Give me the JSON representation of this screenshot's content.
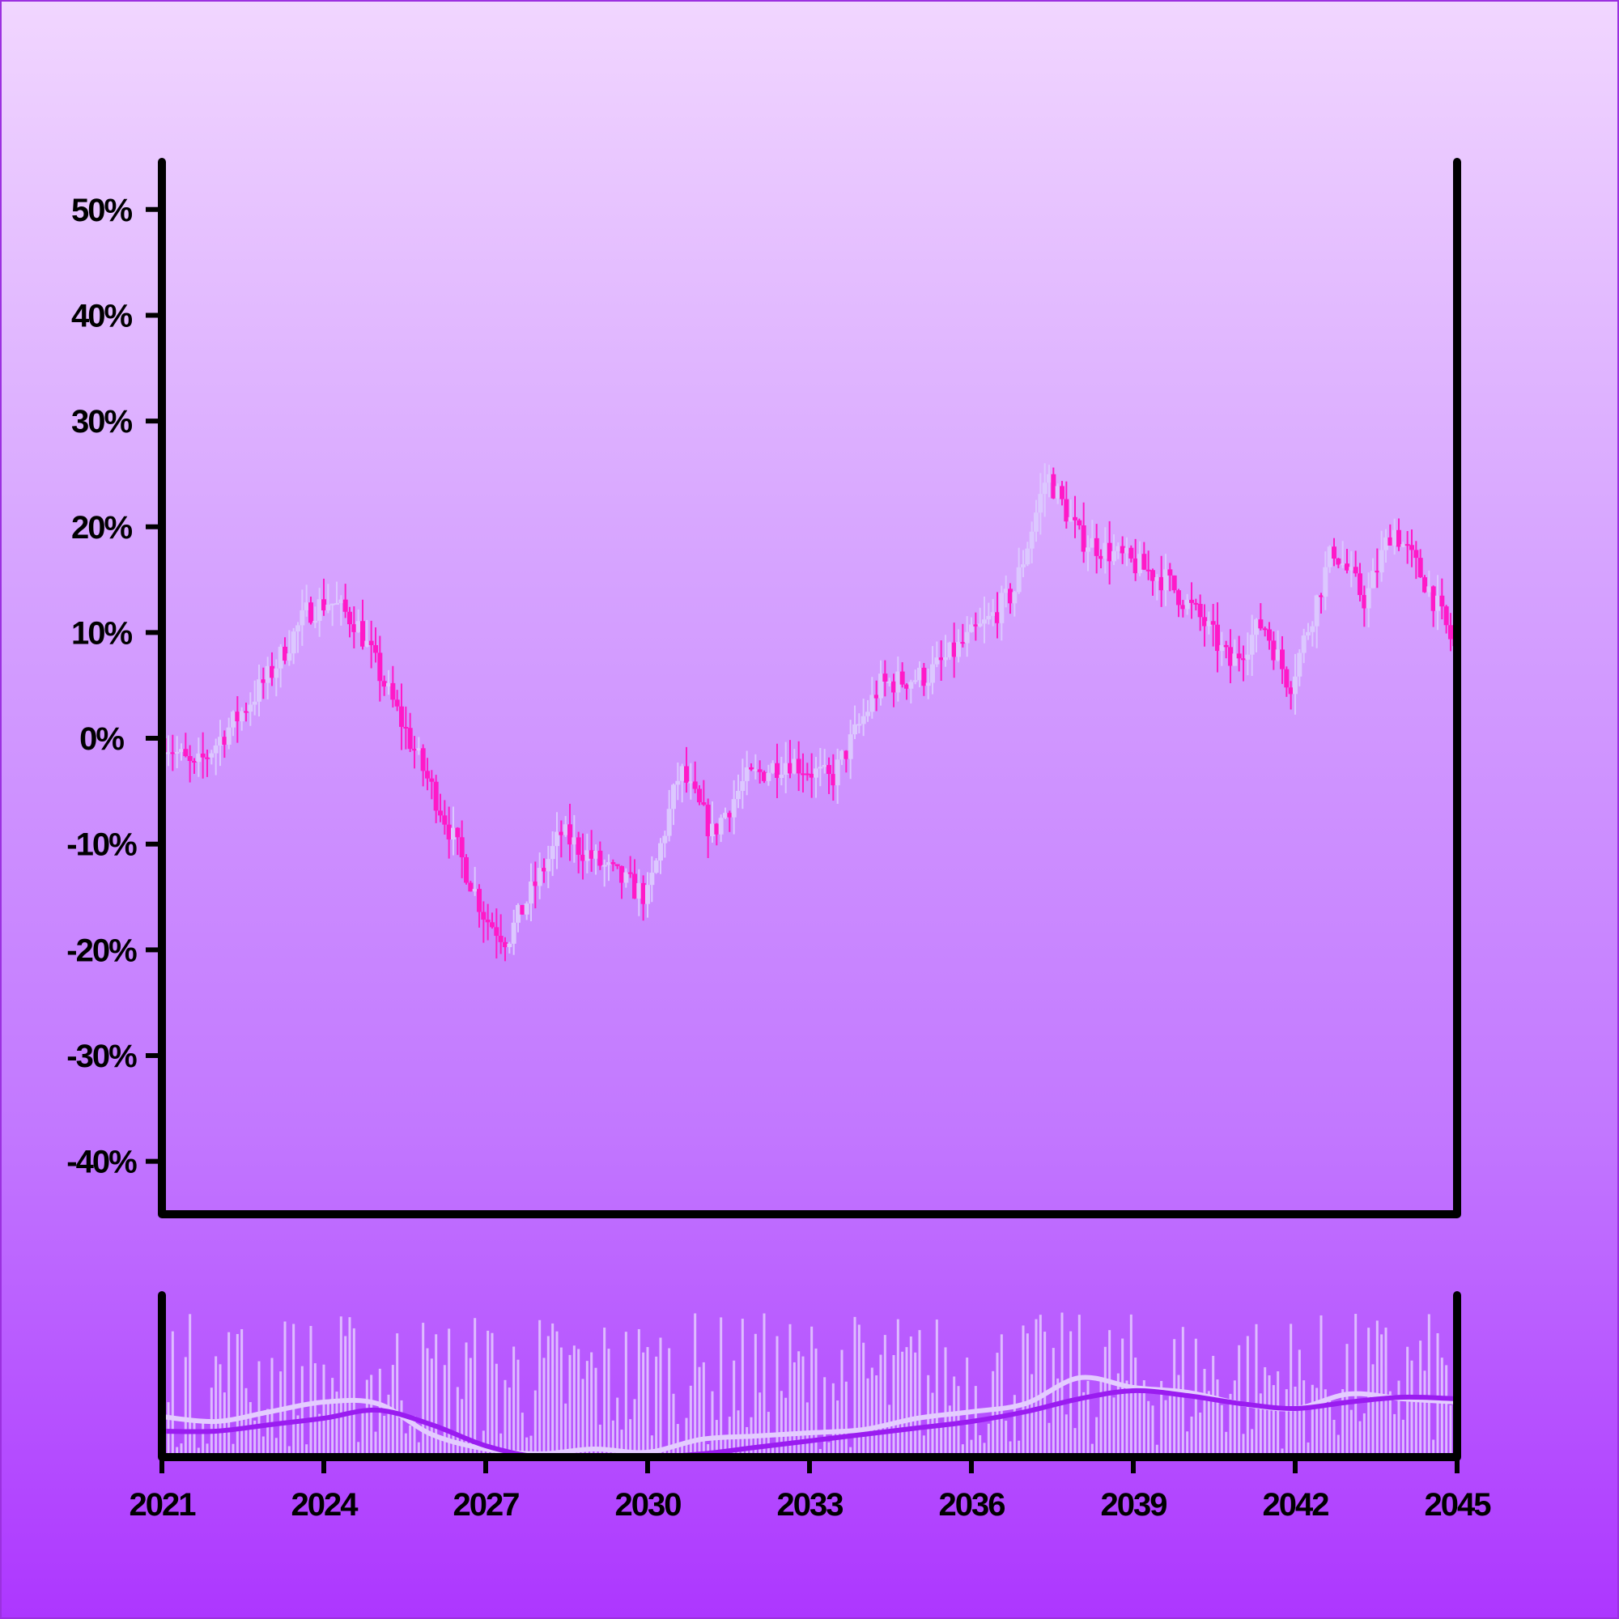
{
  "chart_data": {
    "type": "candlestick",
    "title": "",
    "xlabel": "",
    "ylabel": "",
    "x_range": [
      "2021",
      "2045"
    ],
    "ylim": [
      -0.45,
      0.545
    ],
    "y_ticks": [
      -0.4,
      -0.3,
      -0.2,
      -0.1,
      0,
      0.1,
      0.2,
      0.3,
      0.4,
      0.5
    ],
    "y_tick_labels": [
      "-40%",
      "-30%",
      "-20%",
      "-10%",
      "0%",
      "10%",
      "20%",
      "30%",
      "40%",
      "50%"
    ],
    "x_ticks": [
      "2021",
      "2024",
      "2027",
      "2030",
      "2033",
      "2036",
      "2039",
      "2042",
      "2045"
    ],
    "grid": false,
    "legend": "none",
    "colors": {
      "up": "#dcc8ff",
      "down": "#ff19c8",
      "volume": "#e4ccff",
      "volume_ma_fast": "#e4ccff",
      "volume_ma_slow": "#9a1cf0"
    },
    "price_path": [
      {
        "year": 2021.0,
        "value": 0.0
      },
      {
        "year": 2021.6,
        "value": -0.03
      },
      {
        "year": 2022.4,
        "value": 0.02
      },
      {
        "year": 2023.0,
        "value": 0.06
      },
      {
        "year": 2023.7,
        "value": 0.12
      },
      {
        "year": 2024.1,
        "value": 0.13
      },
      {
        "year": 2024.6,
        "value": 0.11
      },
      {
        "year": 2025.4,
        "value": 0.02
      },
      {
        "year": 2026.2,
        "value": -0.07
      },
      {
        "year": 2027.0,
        "value": -0.17
      },
      {
        "year": 2027.4,
        "value": -0.19
      },
      {
        "year": 2028.4,
        "value": -0.09
      },
      {
        "year": 2029.4,
        "value": -0.13
      },
      {
        "year": 2030.0,
        "value": -0.15
      },
      {
        "year": 2030.6,
        "value": -0.03
      },
      {
        "year": 2031.2,
        "value": -0.09
      },
      {
        "year": 2031.8,
        "value": -0.04
      },
      {
        "year": 2032.6,
        "value": -0.02
      },
      {
        "year": 2033.4,
        "value": -0.04
      },
      {
        "year": 2034.3,
        "value": 0.05
      },
      {
        "year": 2035.2,
        "value": 0.06
      },
      {
        "year": 2036.3,
        "value": 0.11
      },
      {
        "year": 2036.8,
        "value": 0.14
      },
      {
        "year": 2037.4,
        "value": 0.25
      },
      {
        "year": 2038.0,
        "value": 0.19
      },
      {
        "year": 2038.8,
        "value": 0.17
      },
      {
        "year": 2039.6,
        "value": 0.15
      },
      {
        "year": 2040.3,
        "value": 0.11
      },
      {
        "year": 2040.8,
        "value": 0.07
      },
      {
        "year": 2041.4,
        "value": 0.11
      },
      {
        "year": 2041.9,
        "value": 0.05
      },
      {
        "year": 2042.7,
        "value": 0.18
      },
      {
        "year": 2043.3,
        "value": 0.13
      },
      {
        "year": 2043.8,
        "value": 0.2
      },
      {
        "year": 2044.5,
        "value": 0.14
      },
      {
        "year": 2045.0,
        "value": 0.08
      }
    ],
    "volume_ma_fast": [
      {
        "year": 2021.0,
        "value": 0.25
      },
      {
        "year": 2022.0,
        "value": 0.22
      },
      {
        "year": 2023.0,
        "value": 0.28
      },
      {
        "year": 2024.0,
        "value": 0.34
      },
      {
        "year": 2025.0,
        "value": 0.33
      },
      {
        "year": 2026.0,
        "value": 0.14
      },
      {
        "year": 2027.0,
        "value": 0.05
      },
      {
        "year": 2028.0,
        "value": 0.02
      },
      {
        "year": 2029.0,
        "value": 0.05
      },
      {
        "year": 2030.0,
        "value": 0.03
      },
      {
        "year": 2031.0,
        "value": 0.11
      },
      {
        "year": 2032.0,
        "value": 0.13
      },
      {
        "year": 2033.0,
        "value": 0.15
      },
      {
        "year": 2034.0,
        "value": 0.17
      },
      {
        "year": 2035.0,
        "value": 0.24
      },
      {
        "year": 2036.0,
        "value": 0.28
      },
      {
        "year": 2037.0,
        "value": 0.33
      },
      {
        "year": 2038.0,
        "value": 0.49
      },
      {
        "year": 2039.0,
        "value": 0.43
      },
      {
        "year": 2040.0,
        "value": 0.4
      },
      {
        "year": 2041.0,
        "value": 0.33
      },
      {
        "year": 2042.0,
        "value": 0.3
      },
      {
        "year": 2043.0,
        "value": 0.39
      },
      {
        "year": 2044.0,
        "value": 0.36
      },
      {
        "year": 2045.0,
        "value": 0.34
      }
    ],
    "volume_ma_slow": [
      {
        "year": 2021.0,
        "value": 0.16
      },
      {
        "year": 2022.0,
        "value": 0.16
      },
      {
        "year": 2023.0,
        "value": 0.2
      },
      {
        "year": 2024.0,
        "value": 0.24
      },
      {
        "year": 2025.0,
        "value": 0.29
      },
      {
        "year": 2026.0,
        "value": 0.2
      },
      {
        "year": 2027.0,
        "value": 0.07
      },
      {
        "year": 2028.0,
        "value": 0.0
      },
      {
        "year": 2029.0,
        "value": 0.01
      },
      {
        "year": 2030.0,
        "value": 0.0
      },
      {
        "year": 2031.0,
        "value": 0.02
      },
      {
        "year": 2032.0,
        "value": 0.06
      },
      {
        "year": 2033.0,
        "value": 0.1
      },
      {
        "year": 2034.0,
        "value": 0.14
      },
      {
        "year": 2035.0,
        "value": 0.18
      },
      {
        "year": 2036.0,
        "value": 0.22
      },
      {
        "year": 2037.0,
        "value": 0.28
      },
      {
        "year": 2038.0,
        "value": 0.36
      },
      {
        "year": 2039.0,
        "value": 0.41
      },
      {
        "year": 2040.0,
        "value": 0.38
      },
      {
        "year": 2041.0,
        "value": 0.33
      },
      {
        "year": 2042.0,
        "value": 0.3
      },
      {
        "year": 2043.0,
        "value": 0.34
      },
      {
        "year": 2044.0,
        "value": 0.37
      },
      {
        "year": 2045.0,
        "value": 0.36
      }
    ]
  }
}
